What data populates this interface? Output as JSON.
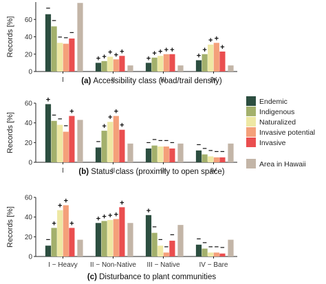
{
  "legend": {
    "placement": "right",
    "groups": [
      {
        "name": "Endemic",
        "color": "#2c4e40"
      },
      {
        "name": "Indigenous",
        "color": "#a3b06c"
      },
      {
        "name": "Naturalized",
        "color": "#eee8a4"
      },
      {
        "name": "Invasive potential",
        "color": "#f4a07a"
      },
      {
        "name": "Invasive",
        "color": "#ea4e4f"
      },
      {
        "name": "Area in Hawaii",
        "color": "#c3b5a7"
      }
    ]
  },
  "chart_data": [
    {
      "type": "bar",
      "title": "(a) Accessibility class (road/trail density)",
      "title_prefix": "(a)",
      "title_text": "Accessibility class (road/trail density)",
      "ylabel": "Records [%]",
      "xlabel": "",
      "ylim": [
        0,
        80
      ],
      "yticks": [
        0,
        20,
        40,
        60
      ],
      "grid": false,
      "categories": [
        "I",
        "II",
        "III",
        "IV"
      ],
      "series": [
        {
          "name": "Endemic",
          "values": [
            66,
            10,
            10,
            13
          ],
          "marks": [
            "−",
            "+",
            "+",
            "+"
          ]
        },
        {
          "name": "Indigenous",
          "values": [
            52,
            12,
            16,
            20
          ],
          "marks": [
            "−",
            "+",
            "+",
            "+"
          ]
        },
        {
          "name": "Naturalized",
          "values": [
            33,
            17,
            18,
            31
          ],
          "marks": [
            "−",
            "+",
            "+",
            "+"
          ]
        },
        {
          "name": "Invasive potential",
          "values": [
            32,
            14,
            20,
            33
          ],
          "marks": [
            "−",
            "+",
            "+",
            "+"
          ]
        },
        {
          "name": "Invasive",
          "values": [
            38,
            18,
            20,
            23
          ],
          "marks": [
            "−",
            "+",
            "+",
            "+"
          ]
        },
        {
          "name": "Area in Hawaii",
          "values": [
            79,
            7,
            7,
            7
          ],
          "marks": [
            "",
            "",
            "",
            ""
          ]
        }
      ]
    },
    {
      "type": "bar",
      "title": "(b) Status class (proximity to open space)",
      "title_prefix": "(b)",
      "title_text": "Status class (proximity to open space)",
      "ylabel": "Records [%]",
      "xlabel": "",
      "ylim": [
        0,
        60
      ],
      "yticks": [
        0,
        20,
        40,
        60
      ],
      "grid": false,
      "categories": [
        "I",
        "II",
        "III",
        "IV"
      ],
      "series": [
        {
          "name": "Endemic",
          "values": [
            59,
            15,
            14,
            12
          ],
          "marks": [
            "+",
            "−",
            "−",
            "−"
          ]
        },
        {
          "name": "Indigenous",
          "values": [
            42,
            32,
            17,
            8
          ],
          "marks": [
            "−",
            "+",
            "−",
            "−"
          ]
        },
        {
          "name": "Naturalized",
          "values": [
            38,
            41,
            16,
            6
          ],
          "marks": [
            "−",
            "+",
            "−",
            "−"
          ]
        },
        {
          "name": "Invasive potential",
          "values": [
            31,
            47,
            16,
            5
          ],
          "marks": [
            "−",
            "+",
            "−",
            "−"
          ]
        },
        {
          "name": "Invasive",
          "values": [
            47,
            33,
            14,
            5
          ],
          "marks": [
            "+",
            "+",
            "−",
            "−"
          ]
        },
        {
          "name": "Area in Hawaii",
          "values": [
            43,
            19,
            19,
            19
          ],
          "marks": [
            "",
            "",
            "",
            ""
          ]
        }
      ]
    },
    {
      "type": "bar",
      "title": "(c) Disturbance to plant communities",
      "title_prefix": "(c)",
      "title_text": "Disturbance to plant communities",
      "ylabel": "Records [%]",
      "xlabel": "",
      "ylim": [
        0,
        60
      ],
      "yticks": [
        0,
        20,
        40,
        60
      ],
      "grid": false,
      "categories": [
        "I − Heavy",
        "II − Non-Native",
        "III − Native",
        "IV − Bare"
      ],
      "series": [
        {
          "name": "Endemic",
          "values": [
            11,
            34,
            42,
            12
          ],
          "marks": [
            "−",
            "+",
            "+",
            "−"
          ]
        },
        {
          "name": "Indigenous",
          "values": [
            29,
            36,
            24,
            8
          ],
          "marks": [
            "+",
            "+",
            "−",
            "−"
          ]
        },
        {
          "name": "Naturalized",
          "values": [
            47,
            37,
            11,
            4
          ],
          "marks": [
            "+",
            "+",
            "−",
            "−"
          ]
        },
        {
          "name": "Invasive potential",
          "values": [
            52,
            38,
            4,
            4
          ],
          "marks": [
            "+",
            "+",
            "−",
            "−"
          ]
        },
        {
          "name": "Invasive",
          "values": [
            29,
            50,
            16,
            3
          ],
          "marks": [
            "+",
            "+",
            "−",
            "−"
          ]
        },
        {
          "name": "Area in Hawaii",
          "values": [
            17,
            34,
            32,
            17
          ],
          "marks": [
            "",
            "",
            "",
            ""
          ]
        }
      ]
    }
  ]
}
